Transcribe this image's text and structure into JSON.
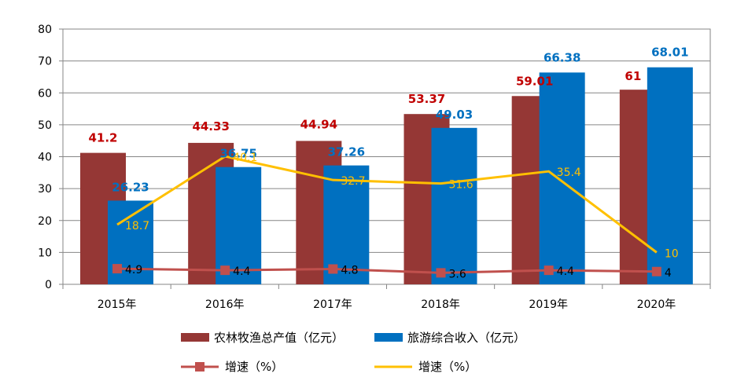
{
  "chart_data": {
    "type": "bar",
    "title": "",
    "xlabel": "",
    "ylabel": "",
    "ylim": [
      0,
      80
    ],
    "yticks": [
      0,
      10,
      20,
      30,
      40,
      50,
      60,
      70,
      80
    ],
    "grid": true,
    "legend_placement": "bottom",
    "categories": [
      "2015年",
      "2016年",
      "2017年",
      "2018年",
      "2019年",
      "2020年"
    ],
    "bar_series": [
      {
        "name": "农林牧渔总产值（亿元）",
        "color": "#953735",
        "label_color": "#c00000",
        "values": [
          41.2,
          44.33,
          44.94,
          53.37,
          59.01,
          61
        ],
        "labels": [
          "41.2",
          "44.33",
          "44.94",
          "53.37",
          "59.01",
          "61"
        ]
      },
      {
        "name": "旅游综合收入（亿元）",
        "color": "#0070c0",
        "label_color": "#0070c0",
        "values": [
          26.23,
          36.75,
          37.26,
          49.03,
          66.38,
          68.01
        ],
        "labels": [
          "26.23",
          "36.75",
          "37.26",
          "49.03",
          "66.38",
          "68.01"
        ]
      }
    ],
    "line_series": [
      {
        "name": "增速（%）",
        "color": "#c0504d",
        "marker": "square",
        "values": [
          4.9,
          4.4,
          4.8,
          3.6,
          4.4,
          4
        ],
        "labels": [
          "4.9",
          "4.4",
          "4.8",
          "3.6",
          "4.4",
          "4"
        ]
      },
      {
        "name": "增速（%）",
        "color": "#ffc000",
        "marker": "none",
        "values": [
          18.7,
          40.1,
          32.7,
          31.6,
          35.4,
          10
        ],
        "labels": [
          "18.7",
          "40.1",
          "32.7",
          "31.6",
          "35.4",
          "10"
        ]
      }
    ]
  }
}
